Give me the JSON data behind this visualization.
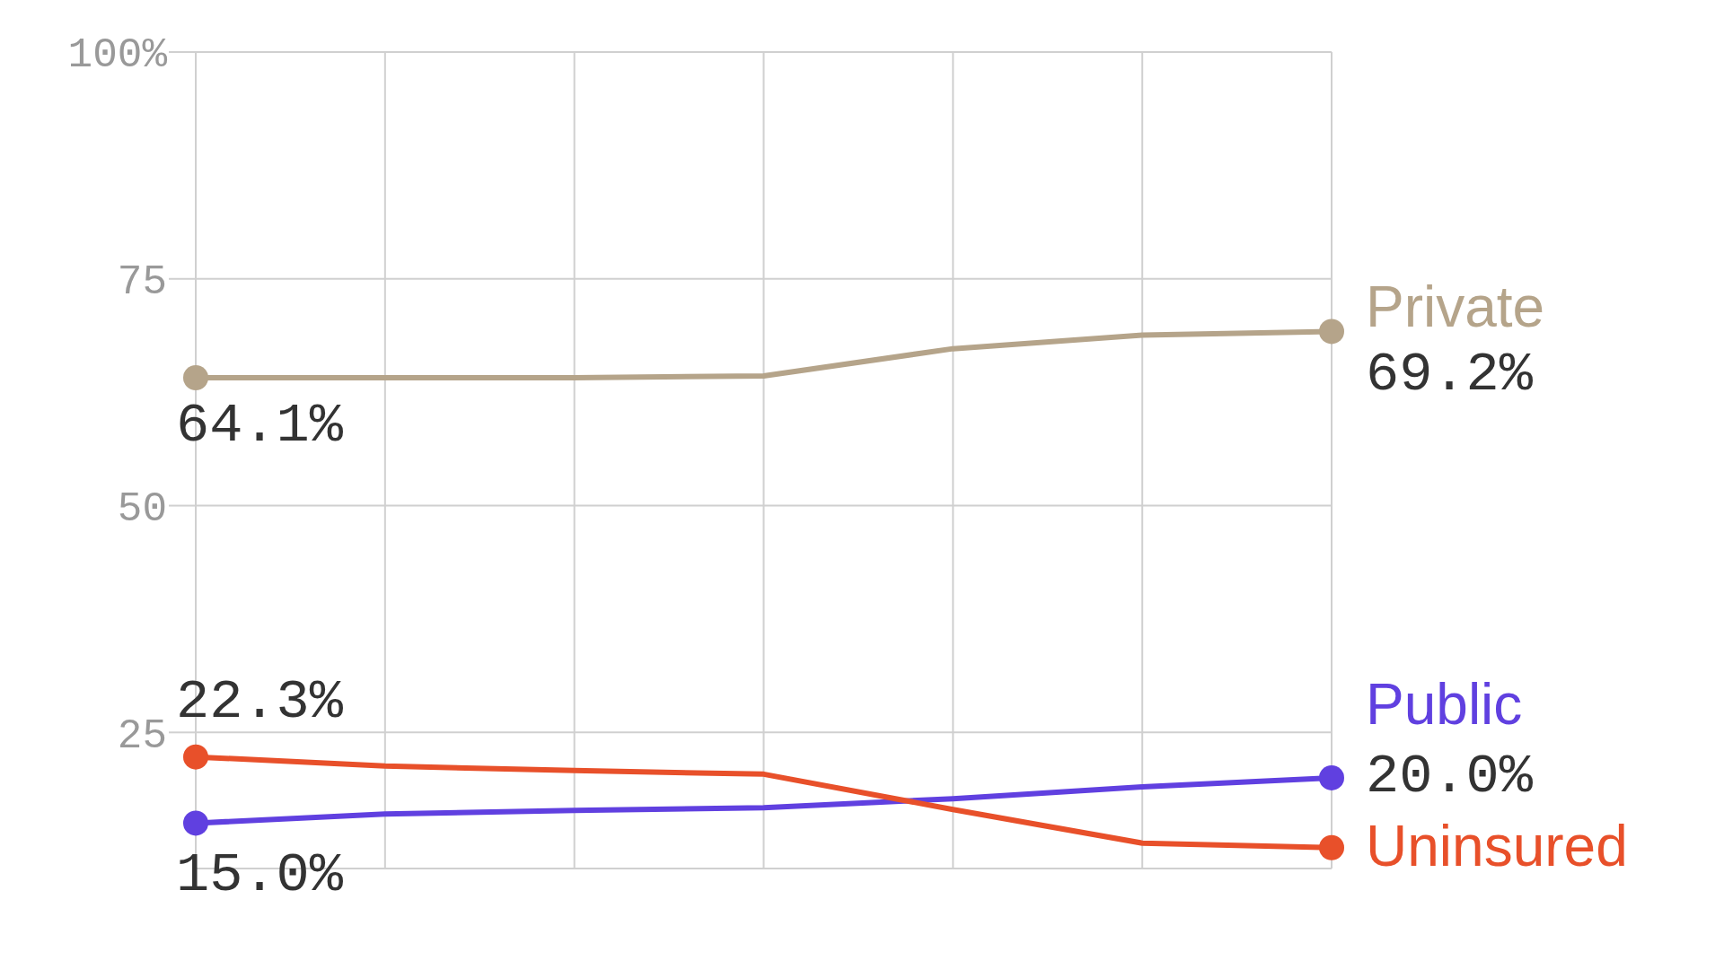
{
  "chart_data": {
    "type": "line",
    "categories": [
      null,
      null,
      null,
      null,
      null,
      null,
      null
    ],
    "series": [
      {
        "name": "Private",
        "color": "#b5a48a",
        "values": [
          64.1,
          64.1,
          64.1,
          64.3,
          67.3,
          68.8,
          69.2
        ],
        "value_labels": [
          "64.1%",
          null,
          null,
          null,
          null,
          null,
          "69.2%"
        ]
      },
      {
        "name": "Public",
        "color": "#6040e0",
        "values": [
          15.0,
          16.0,
          16.4,
          16.7,
          17.7,
          19.0,
          20.0
        ],
        "value_labels": [
          "15.0%",
          null,
          null,
          null,
          null,
          null,
          "20.0%"
        ]
      },
      {
        "name": "Uninsured",
        "color": "#e8502a",
        "values": [
          22.3,
          21.3,
          20.8,
          20.4,
          16.5,
          12.8,
          12.3
        ],
        "value_labels": [
          "22.3%",
          null,
          null,
          null,
          null,
          null,
          null
        ]
      }
    ],
    "ylim": [
      10,
      100
    ],
    "yticks": [
      25,
      50,
      75,
      {
        "value": 100,
        "label": "100%"
      }
    ],
    "grid": true,
    "line_style": "solid",
    "tick_labels": "y"
  }
}
